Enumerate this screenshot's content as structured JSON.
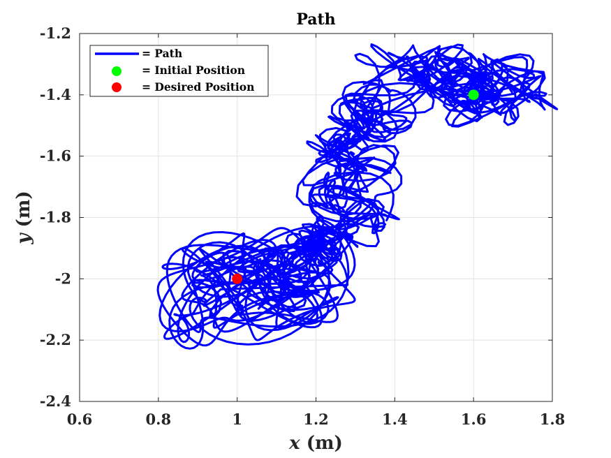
{
  "chart_data": {
    "type": "line",
    "title": "Path",
    "xlabel_symbol": "x",
    "xlabel_unit": " (m)",
    "ylabel_symbol": "y",
    "ylabel_unit": " (m)",
    "xlim": [
      0.6,
      1.8
    ],
    "ylim": [
      -2.4,
      -1.2
    ],
    "xticks": [
      0.6,
      0.8,
      1.0,
      1.2,
      1.4,
      1.6,
      1.8
    ],
    "xtick_labels": [
      "0.6",
      "0.8",
      "1",
      "1.2",
      "1.4",
      "1.6",
      "1.8"
    ],
    "yticks": [
      -2.4,
      -2.2,
      -2.0,
      -1.8,
      -1.6,
      -1.4,
      -1.2
    ],
    "ytick_labels": [
      "-2.4",
      "-2.2",
      "-2",
      "-1.8",
      "-1.6",
      "-1.4",
      "-1.2"
    ],
    "grid": true,
    "legend_position": "top-left",
    "legend": [
      {
        "label": "= Path",
        "marker": "line",
        "color": "#0000ff"
      },
      {
        "label": "= Initial Position",
        "marker": "circle",
        "color": "#00ff00"
      },
      {
        "label": "= Desired Position",
        "marker": "circle",
        "color": "#ff0000"
      }
    ],
    "series": [
      {
        "name": "Path",
        "color": "#0000ff",
        "centerline": [
          [
            1.6,
            -1.4
          ],
          [
            1.64,
            -1.37
          ],
          [
            1.7,
            -1.35
          ],
          [
            1.66,
            -1.42
          ],
          [
            1.58,
            -1.39
          ],
          [
            1.55,
            -1.33
          ],
          [
            1.5,
            -1.3
          ],
          [
            1.44,
            -1.33
          ],
          [
            1.4,
            -1.38
          ],
          [
            1.36,
            -1.45
          ],
          [
            1.32,
            -1.49
          ],
          [
            1.28,
            -1.54
          ],
          [
            1.25,
            -1.6
          ],
          [
            1.28,
            -1.65
          ],
          [
            1.3,
            -1.72
          ],
          [
            1.29,
            -1.8
          ],
          [
            1.25,
            -1.84
          ],
          [
            1.21,
            -1.88
          ],
          [
            1.17,
            -1.93
          ],
          [
            1.13,
            -1.98
          ],
          [
            1.08,
            -2.0
          ],
          [
            1.03,
            -2.02
          ],
          [
            1.0,
            -2.0
          ]
        ]
      }
    ],
    "initial_position": {
      "x": 1.6,
      "y": -1.4,
      "color": "#00ff00"
    },
    "desired_position": {
      "x": 1.0,
      "y": -2.0,
      "color": "#ff0000"
    }
  }
}
